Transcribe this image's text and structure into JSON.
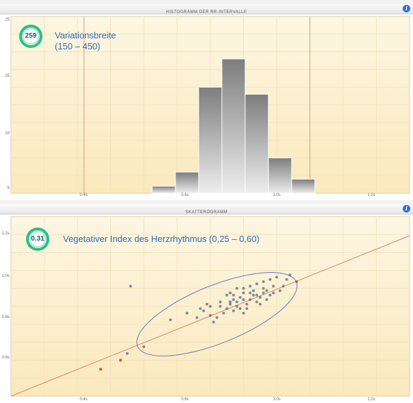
{
  "histogram": {
    "title": "HISTOGRAMM DER RR-INTERVALLE",
    "info": "i",
    "badge_value": "259",
    "metric_line1": "Variationsbreite",
    "metric_line2": "(150 – 450)",
    "y_ticks": [
      "25",
      "15",
      "10",
      "5"
    ],
    "x_ticks": [
      "0.4s",
      "0.6s",
      "1.0s",
      "1.2s"
    ],
    "colors": {
      "background": "#fdf3d8",
      "bars": "#9a9a9a",
      "range_lines": "#d9998a"
    }
  },
  "scatter": {
    "title": "SKATTEROGRAMM",
    "info": "i",
    "badge_value": "0.31",
    "metric_label": "Vegetativer Index des Herzrhythmus (0,25 – 0,60)",
    "y_ticks": [
      "1.2s",
      "1.0s",
      "0.8s",
      "0.6s"
    ],
    "x_ticks": [
      "0.4s",
      "0.6s",
      "1.0s",
      "1.2s"
    ],
    "colors": {
      "background": "#fdf3d8",
      "points": "#4a6a8a",
      "diagonal": "#e0806a",
      "ellipse": "#6a74c8"
    }
  },
  "chart_data": [
    {
      "type": "bar",
      "categories": [
        "0.66",
        "0.73",
        "0.80",
        "0.87",
        "0.94",
        "1.01",
        "1.08"
      ],
      "values": [
        1,
        3,
        15,
        19,
        14,
        5,
        2
      ],
      "ylim": [
        0,
        25
      ],
      "xlim": [
        0.2,
        1.4
      ]
    },
    {
      "type": "scatter",
      "xlim": [
        0.2,
        1.4
      ],
      "ylim": [
        0.45,
        1.25
      ],
      "points": [
        [
          0.55,
          0.64
        ],
        [
          0.6,
          0.67
        ],
        [
          0.56,
          0.94
        ],
        [
          0.68,
          0.79
        ],
        [
          0.73,
          0.82
        ],
        [
          0.77,
          0.84
        ],
        [
          0.8,
          0.85
        ],
        [
          0.83,
          0.87
        ],
        [
          0.85,
          0.9
        ],
        [
          0.87,
          0.88
        ],
        [
          0.9,
          0.91
        ],
        [
          0.92,
          0.94
        ],
        [
          0.94,
          0.95
        ],
        [
          0.96,
          0.96
        ],
        [
          0.98,
          0.97
        ],
        [
          1.0,
          0.98
        ],
        [
          1.04,
          0.99
        ],
        [
          0.86,
          0.86
        ],
        [
          0.88,
          0.87
        ],
        [
          0.89,
          0.89
        ],
        [
          0.91,
          0.86
        ],
        [
          0.93,
          0.9
        ],
        [
          0.95,
          0.89
        ],
        [
          0.97,
          0.92
        ],
        [
          0.99,
          0.91
        ],
        [
          1.02,
          0.94
        ],
        [
          0.9,
          0.93
        ],
        [
          0.92,
          0.88
        ],
        [
          0.94,
          0.87
        ],
        [
          0.96,
          0.93
        ],
        [
          0.98,
          0.9
        ],
        [
          0.87,
          0.83
        ],
        [
          0.89,
          0.84
        ],
        [
          0.84,
          0.82
        ],
        [
          0.82,
          0.8
        ],
        [
          0.8,
          0.81
        ],
        [
          0.91,
          0.84
        ],
        [
          0.95,
          0.86
        ],
        [
          0.93,
          0.92
        ],
        [
          0.97,
          0.88
        ],
        [
          1.01,
          0.92
        ],
        [
          0.86,
          0.91
        ],
        [
          0.88,
          0.93
        ],
        [
          0.85,
          0.84
        ],
        [
          0.9,
          0.82
        ],
        [
          0.83,
          0.85
        ],
        [
          0.79,
          0.86
        ],
        [
          0.76,
          0.8
        ],
        [
          0.81,
          0.78
        ],
        [
          0.94,
          0.9
        ],
        [
          0.96,
          0.91
        ],
        [
          0.92,
          0.91
        ],
        [
          0.87,
          0.9
        ],
        [
          0.9,
          0.88
        ],
        [
          0.88,
          0.85
        ],
        [
          0.86,
          0.87
        ],
        [
          0.99,
          0.94
        ],
        [
          1.03,
          0.97
        ],
        [
          1.06,
          0.96
        ],
        [
          0.78,
          0.83
        ]
      ]
    }
  ]
}
